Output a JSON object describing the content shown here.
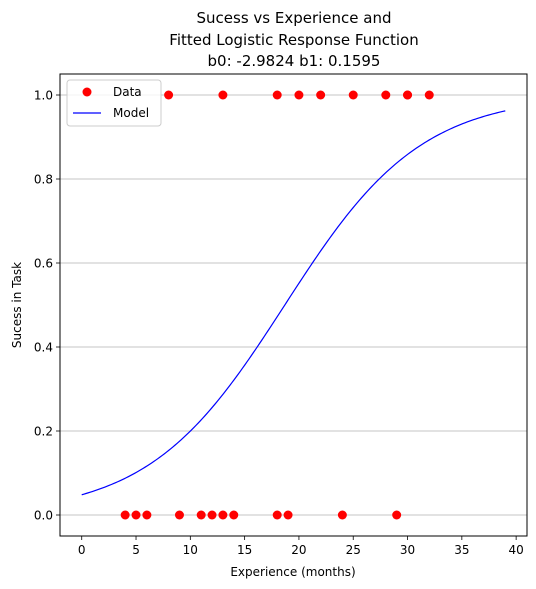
{
  "chart_data": {
    "type": "scatter",
    "title_lines": [
      "Sucess vs Experience and",
      "Fitted Logistic Response Function",
      "b0: -2.9824 b1: 0.1595"
    ],
    "xlabel": "Experience (months)",
    "ylabel": "Sucess in Task",
    "xlim": [
      -2,
      41
    ],
    "ylim": [
      -0.05,
      1.05
    ],
    "xticks": [
      0,
      5,
      10,
      15,
      20,
      25,
      30,
      35,
      40
    ],
    "yticks": [
      0.0,
      0.2,
      0.4,
      0.6,
      0.8,
      1.0
    ],
    "grid": "horizontal",
    "legend": {
      "placement": "top-left",
      "entries": [
        "Data",
        "Model"
      ]
    },
    "colors": {
      "data": "#ff0000",
      "model": "#0000ff",
      "grid": "#b0b0b0"
    },
    "series": [
      {
        "name": "Data",
        "kind": "points",
        "x": [
          4,
          5,
          6,
          8,
          9,
          11,
          12,
          13,
          13,
          14,
          18,
          18,
          19,
          20,
          22,
          24,
          25,
          28,
          29,
          30,
          30,
          32
        ],
        "y": [
          0,
          0,
          0,
          1,
          0,
          0,
          0,
          0,
          1,
          0,
          0,
          1,
          0,
          1,
          1,
          0,
          1,
          1,
          0,
          1,
          1,
          1
        ]
      },
      {
        "name": "Model",
        "kind": "line",
        "b0": -2.9824,
        "b1": 0.1595,
        "x_range": [
          0,
          39
        ]
      }
    ]
  }
}
